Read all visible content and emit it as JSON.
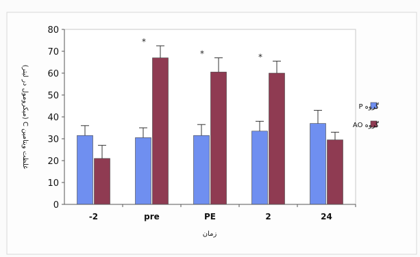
{
  "chart_data": {
    "type": "bar",
    "title": "",
    "xlabel": "زمان",
    "ylabel": "غلظت ویتامین C (میکرومول در لیتر)",
    "ylim": [
      0,
      80
    ],
    "yticks": [
      0,
      10,
      20,
      30,
      40,
      50,
      60,
      70,
      80
    ],
    "categories": [
      "-2",
      "pre",
      "PE",
      "2",
      "24"
    ],
    "series": [
      {
        "name": "گروه P",
        "color": "#6f8ff0",
        "values": [
          31.5,
          30.5,
          31.5,
          33.5,
          37
        ],
        "errors": [
          4.5,
          4.5,
          5,
          4.5,
          6
        ]
      },
      {
        "name": "گروه AO",
        "color": "#8f3b52",
        "values": [
          21,
          67,
          60.5,
          60,
          29.5
        ],
        "errors": [
          6,
          5.5,
          6.5,
          5.5,
          3.5
        ]
      }
    ],
    "significance_markers": [
      "",
      "*",
      "*",
      "*",
      ""
    ],
    "grid": false,
    "legend_position": "right"
  }
}
